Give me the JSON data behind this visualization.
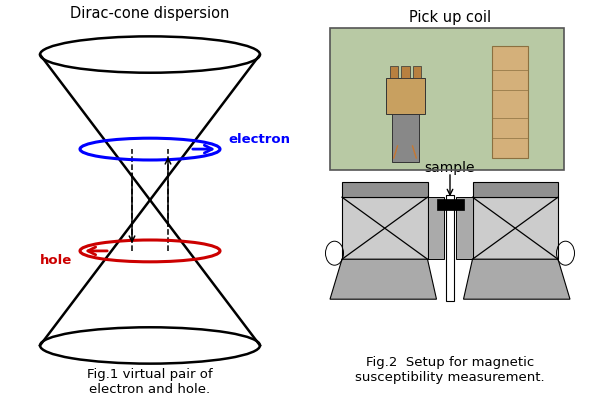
{
  "title_left": "Dirac-cone dispersion",
  "title_right": "Pick up coil",
  "caption_left": "Fig.1 virtual pair of\nelectron and hole.",
  "caption_right": "Fig.2  Setup for magnetic\nsusceptibility measurement.",
  "electron_label": "electron",
  "hole_label": "hole",
  "sample_label": "sample",
  "electron_color": "#0000FF",
  "hole_color": "#CC0000",
  "cone_color": "#000000",
  "bg_color": "#FFFFFF",
  "photo_bg": "#b8c4a0",
  "gray_dark": "#909090",
  "gray_light": "#cccccc",
  "gray_mid": "#aaaaaa"
}
